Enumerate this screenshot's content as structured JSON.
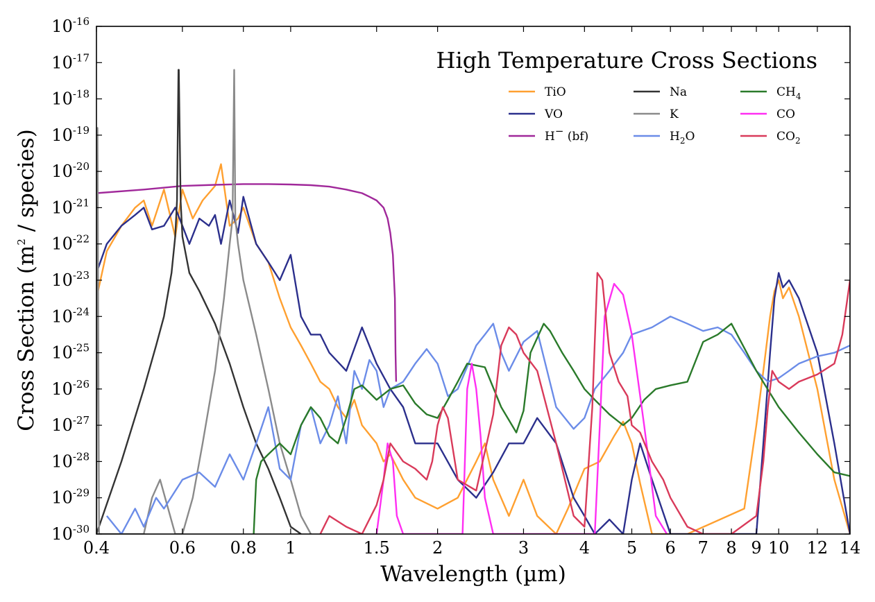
{
  "chart_data": {
    "type": "line",
    "title": "High Temperature Cross Sections",
    "xlabel": "Wavelength (µm)",
    "ylabel": {
      "prefix": "Cross Section (m",
      "sup": "2",
      "suffix": " / species)"
    },
    "x_scale": "log",
    "y_scale": "log",
    "xlim": [
      0.4,
      14
    ],
    "ylim": [
      1e-30,
      1e-16
    ],
    "x_ticks": [
      0.4,
      0.6,
      0.8,
      1,
      1.5,
      2,
      3,
      4,
      5,
      6,
      7,
      8,
      9,
      10,
      12,
      14
    ],
    "x_tick_labels": [
      "0.4",
      "0.6",
      "0.8",
      "1",
      "1.5",
      "2",
      "3",
      "4",
      "5",
      "6",
      "7",
      "8",
      "9",
      "10",
      "12",
      "14"
    ],
    "y_ticks": [
      -30,
      -29,
      -28,
      -27,
      -26,
      -25,
      -24,
      -23,
      -22,
      -21,
      -20,
      -19,
      -18,
      -17,
      -16
    ],
    "y_tick_base": "10",
    "y_tick_exponents": [
      "-30",
      "-29",
      "-28",
      "-27",
      "-26",
      "-25",
      "-24",
      "-23",
      "-22",
      "-21",
      "-20",
      "-19",
      "-18",
      "-17",
      "-16"
    ],
    "grid": false,
    "legend_position": "upper-right",
    "series": [
      {
        "name": "TiO",
        "label_main": "TiO",
        "color": "#ffa030",
        "x": [
          0.4,
          0.42,
          0.45,
          0.48,
          0.5,
          0.52,
          0.55,
          0.58,
          0.6,
          0.63,
          0.66,
          0.7,
          0.72,
          0.75,
          0.78,
          0.8,
          0.85,
          0.9,
          0.95,
          1.0,
          1.05,
          1.1,
          1.15,
          1.2,
          1.25,
          1.3,
          1.35,
          1.4,
          1.5,
          1.55,
          1.6,
          1.7,
          1.8,
          2.0,
          2.2,
          2.4,
          2.5,
          2.6,
          2.8,
          3.0,
          3.2,
          3.5,
          3.7,
          4.0,
          4.3,
          4.6,
          4.8,
          5.0,
          5.2,
          5.5,
          5.8,
          6.5,
          8.5,
          9.0,
          9.3,
          9.6,
          9.8,
          10.0,
          10.2,
          10.5,
          11.0,
          12.0,
          13.0,
          14.0
        ],
        "y": [
          -23.5,
          -22.2,
          -21.5,
          -21.0,
          -20.8,
          -21.5,
          -20.5,
          -21.8,
          -20.5,
          -21.3,
          -20.8,
          -20.4,
          -19.8,
          -21.5,
          -21.3,
          -21.0,
          -22.0,
          -22.5,
          -23.5,
          -24.3,
          -24.8,
          -25.3,
          -25.8,
          -26.0,
          -26.5,
          -26.8,
          -26.3,
          -27.0,
          -27.5,
          -28.0,
          -27.8,
          -28.5,
          -29.0,
          -29.3,
          -29.0,
          -28.0,
          -27.5,
          -28.5,
          -29.5,
          -28.5,
          -29.5,
          -30.0,
          -29.3,
          -28.2,
          -28.0,
          -27.3,
          -26.9,
          -27.5,
          -28.6,
          -30.0,
          -30.0,
          -30.0,
          -29.3,
          -27.0,
          -25.5,
          -24.0,
          -23.3,
          -23.0,
          -23.5,
          -23.2,
          -24.0,
          -26.0,
          -28.5,
          -30.0
        ]
      },
      {
        "name": "VO",
        "label_main": "VO",
        "color": "#2b2f8c",
        "x": [
          0.4,
          0.42,
          0.45,
          0.48,
          0.5,
          0.52,
          0.55,
          0.58,
          0.6,
          0.62,
          0.65,
          0.68,
          0.7,
          0.72,
          0.75,
          0.78,
          0.8,
          0.85,
          0.9,
          0.95,
          1.0,
          1.05,
          1.1,
          1.15,
          1.2,
          1.3,
          1.4,
          1.5,
          1.6,
          1.7,
          1.8,
          2.0,
          2.2,
          2.4,
          2.6,
          2.8,
          3.0,
          3.2,
          3.5,
          3.8,
          4.0,
          4.2,
          4.5,
          4.8,
          5.0,
          5.2,
          5.5,
          6.0,
          7.0,
          8.5,
          9.0,
          9.3,
          9.6,
          9.8,
          10.0,
          10.2,
          10.5,
          11.0,
          12.0,
          13.0,
          14.0
        ],
        "y": [
          -22.8,
          -22.0,
          -21.5,
          -21.2,
          -21.0,
          -21.6,
          -21.5,
          -21.0,
          -21.5,
          -22.0,
          -21.3,
          -21.5,
          -21.2,
          -22.0,
          -20.8,
          -21.7,
          -20.7,
          -22.0,
          -22.5,
          -23.0,
          -22.3,
          -24.0,
          -24.5,
          -24.5,
          -25.0,
          -25.5,
          -24.3,
          -25.3,
          -26.0,
          -26.5,
          -27.5,
          -27.5,
          -28.5,
          -29.0,
          -28.3,
          -27.5,
          -27.5,
          -26.8,
          -27.5,
          -29.0,
          -29.5,
          -30.0,
          -29.6,
          -30.0,
          -28.5,
          -27.5,
          -28.5,
          -30.0,
          -30.0,
          -30.0,
          -30.0,
          -27.5,
          -25.0,
          -23.5,
          -22.8,
          -23.2,
          -23.0,
          -23.5,
          -25.0,
          -27.5,
          -30.0
        ]
      },
      {
        "name": "H⁻ (bf)",
        "label_main": "H",
        "label_sup": "−",
        "label_after": " (bf)",
        "color": "#a0289a",
        "x": [
          0.4,
          0.5,
          0.6,
          0.7,
          0.8,
          0.9,
          1.0,
          1.1,
          1.2,
          1.3,
          1.4,
          1.45,
          1.5,
          1.55,
          1.58,
          1.6,
          1.62,
          1.635,
          1.64,
          1.645
        ],
        "y": [
          -20.6,
          -20.5,
          -20.4,
          -20.37,
          -20.35,
          -20.35,
          -20.36,
          -20.38,
          -20.42,
          -20.5,
          -20.6,
          -20.7,
          -20.8,
          -21.0,
          -21.3,
          -21.7,
          -22.3,
          -23.5,
          -25.0,
          -25.8
        ]
      },
      {
        "name": "Na",
        "label_main": "Na",
        "color": "#333333",
        "x": [
          0.4,
          0.45,
          0.5,
          0.53,
          0.55,
          0.57,
          0.58,
          0.585,
          0.589,
          0.59,
          0.595,
          0.6,
          0.62,
          0.65,
          0.7,
          0.75,
          0.8,
          0.85,
          0.9,
          0.95,
          1.0,
          1.05
        ],
        "y": [
          -30.0,
          -28.0,
          -26.0,
          -24.8,
          -24.0,
          -22.8,
          -21.8,
          -20.8,
          -17.2,
          -17.2,
          -20.8,
          -21.8,
          -22.8,
          -23.3,
          -24.2,
          -25.3,
          -26.5,
          -27.5,
          -28.2,
          -29.0,
          -29.8,
          -30.0
        ]
      },
      {
        "name": "K",
        "label_main": "K",
        "color": "#8a8a8a",
        "x": [
          0.4,
          0.402,
          0.405,
          0.5,
          0.52,
          0.54,
          0.58,
          0.6,
          0.63,
          0.66,
          0.7,
          0.73,
          0.75,
          0.76,
          0.766,
          0.77,
          0.78,
          0.8,
          0.85,
          0.9,
          0.95,
          1.0,
          1.05,
          1.1
        ],
        "y": [
          -30.0,
          -18.8,
          -30.0,
          -30.0,
          -29.0,
          -28.5,
          -30.0,
          -30.0,
          -29.0,
          -27.5,
          -25.5,
          -23.5,
          -22.0,
          -21.3,
          -17.2,
          -21.3,
          -22.0,
          -23.0,
          -24.5,
          -26.0,
          -27.5,
          -28.5,
          -29.5,
          -30.0
        ]
      },
      {
        "name": "H₂O",
        "label_main": "H",
        "label_sub": "2",
        "label_after": "O",
        "color": "#6b8ce8",
        "x": [
          0.42,
          0.45,
          0.48,
          0.5,
          0.53,
          0.55,
          0.6,
          0.65,
          0.7,
          0.75,
          0.8,
          0.85,
          0.9,
          0.95,
          1.0,
          1.05,
          1.1,
          1.15,
          1.2,
          1.25,
          1.3,
          1.35,
          1.4,
          1.45,
          1.5,
          1.55,
          1.6,
          1.7,
          1.8,
          1.9,
          2.0,
          2.1,
          2.2,
          2.4,
          2.5,
          2.6,
          2.7,
          2.8,
          3.0,
          3.2,
          3.5,
          3.8,
          4.0,
          4.2,
          4.5,
          4.8,
          5.0,
          5.5,
          6.0,
          6.5,
          7.0,
          7.5,
          8.0,
          8.5,
          9.0,
          9.5,
          10.0,
          10.5,
          11.0,
          12.0,
          13.0,
          14.0
        ],
        "y": [
          -29.5,
          -30.0,
          -29.3,
          -29.8,
          -29.0,
          -29.3,
          -28.5,
          -28.3,
          -28.7,
          -27.8,
          -28.5,
          -27.5,
          -26.5,
          -28.2,
          -28.5,
          -27.0,
          -26.5,
          -27.5,
          -27.0,
          -26.2,
          -27.5,
          -25.5,
          -26.0,
          -25.2,
          -25.5,
          -26.5,
          -26.0,
          -25.8,
          -25.3,
          -24.9,
          -25.3,
          -26.2,
          -26.0,
          -24.8,
          -24.5,
          -24.2,
          -25.0,
          -25.5,
          -24.7,
          -24.4,
          -26.5,
          -27.1,
          -26.8,
          -26.0,
          -25.5,
          -25.0,
          -24.5,
          -24.3,
          -24.0,
          -24.2,
          -24.4,
          -24.3,
          -24.5,
          -25.0,
          -25.5,
          -25.8,
          -25.7,
          -25.5,
          -25.3,
          -25.1,
          -25.0,
          -24.8
        ]
      },
      {
        "name": "CH₄",
        "label_main": "CH",
        "label_sub": "4",
        "color": "#2a7a2a",
        "x": [
          0.84,
          0.85,
          0.87,
          0.9,
          0.95,
          1.0,
          1.05,
          1.1,
          1.15,
          1.2,
          1.25,
          1.3,
          1.35,
          1.4,
          1.5,
          1.6,
          1.7,
          1.8,
          1.9,
          2.0,
          2.1,
          2.2,
          2.3,
          2.5,
          2.7,
          2.9,
          3.0,
          3.1,
          3.3,
          3.4,
          3.6,
          3.8,
          4.0,
          4.2,
          4.5,
          4.8,
          5.0,
          5.3,
          5.6,
          6.0,
          6.5,
          7.0,
          7.5,
          8.0,
          9.0,
          10.0,
          11.0,
          12.0,
          13.0,
          14.0
        ],
        "y": [
          -30.0,
          -28.5,
          -28.0,
          -27.8,
          -27.5,
          -27.8,
          -27.0,
          -26.5,
          -26.8,
          -27.3,
          -27.5,
          -26.8,
          -26.0,
          -25.9,
          -26.3,
          -26.0,
          -25.9,
          -26.4,
          -26.7,
          -26.8,
          -26.3,
          -25.8,
          -25.3,
          -25.4,
          -26.5,
          -27.2,
          -26.6,
          -25.0,
          -24.2,
          -24.4,
          -25.0,
          -25.5,
          -26.0,
          -26.3,
          -26.7,
          -27.0,
          -26.8,
          -26.3,
          -26.0,
          -25.9,
          -25.8,
          -24.7,
          -24.5,
          -24.2,
          -25.5,
          -26.5,
          -27.2,
          -27.8,
          -28.3,
          -28.4
        ]
      },
      {
        "name": "CO",
        "label_main": "CO",
        "color": "#ff2ef2",
        "x": [
          1.5,
          1.55,
          1.58,
          1.62,
          1.65,
          1.7,
          2.25,
          2.3,
          2.35,
          2.4,
          2.45,
          2.5,
          2.6,
          4.2,
          4.3,
          4.4,
          4.6,
          4.8,
          5.0,
          5.3,
          5.6,
          5.9
        ],
        "y": [
          -30.0,
          -28.5,
          -27.5,
          -28.0,
          -29.5,
          -30.0,
          -30.0,
          -26.0,
          -25.3,
          -26.0,
          -27.3,
          -29.0,
          -30.0,
          -30.0,
          -27.0,
          -24.0,
          -23.1,
          -23.4,
          -24.5,
          -27.0,
          -29.5,
          -30.0
        ]
      },
      {
        "name": "CO₂",
        "label_main": "CO",
        "label_sub": "2",
        "color": "#d93a5a",
        "x": [
          1.15,
          1.2,
          1.3,
          1.4,
          1.5,
          1.55,
          1.6,
          1.7,
          1.8,
          1.9,
          1.95,
          2.0,
          2.05,
          2.1,
          2.2,
          2.4,
          2.6,
          2.7,
          2.8,
          2.9,
          3.0,
          3.2,
          3.5,
          3.8,
          4.0,
          4.15,
          4.25,
          4.35,
          4.5,
          4.7,
          4.9,
          5.0,
          5.2,
          5.5,
          5.8,
          6.0,
          6.5,
          7.0,
          8.0,
          9.0,
          9.3,
          9.5,
          9.7,
          10.0,
          10.5,
          11.0,
          12.0,
          13.0,
          13.5,
          14.0
        ],
        "y": [
          -30.0,
          -29.5,
          -29.8,
          -30.0,
          -29.2,
          -28.5,
          -27.5,
          -28.0,
          -28.2,
          -28.5,
          -28.0,
          -27.0,
          -26.5,
          -26.8,
          -28.5,
          -28.8,
          -26.7,
          -24.8,
          -24.3,
          -24.5,
          -25.0,
          -25.5,
          -27.5,
          -29.5,
          -29.8,
          -26.5,
          -22.8,
          -23.0,
          -25.0,
          -25.8,
          -26.2,
          -27.0,
          -27.2,
          -28.0,
          -28.5,
          -29.0,
          -29.8,
          -30.0,
          -30.0,
          -29.5,
          -28.0,
          -26.5,
          -25.5,
          -25.8,
          -26.0,
          -25.8,
          -25.6,
          -25.3,
          -24.5,
          -23.0
        ]
      }
    ]
  }
}
